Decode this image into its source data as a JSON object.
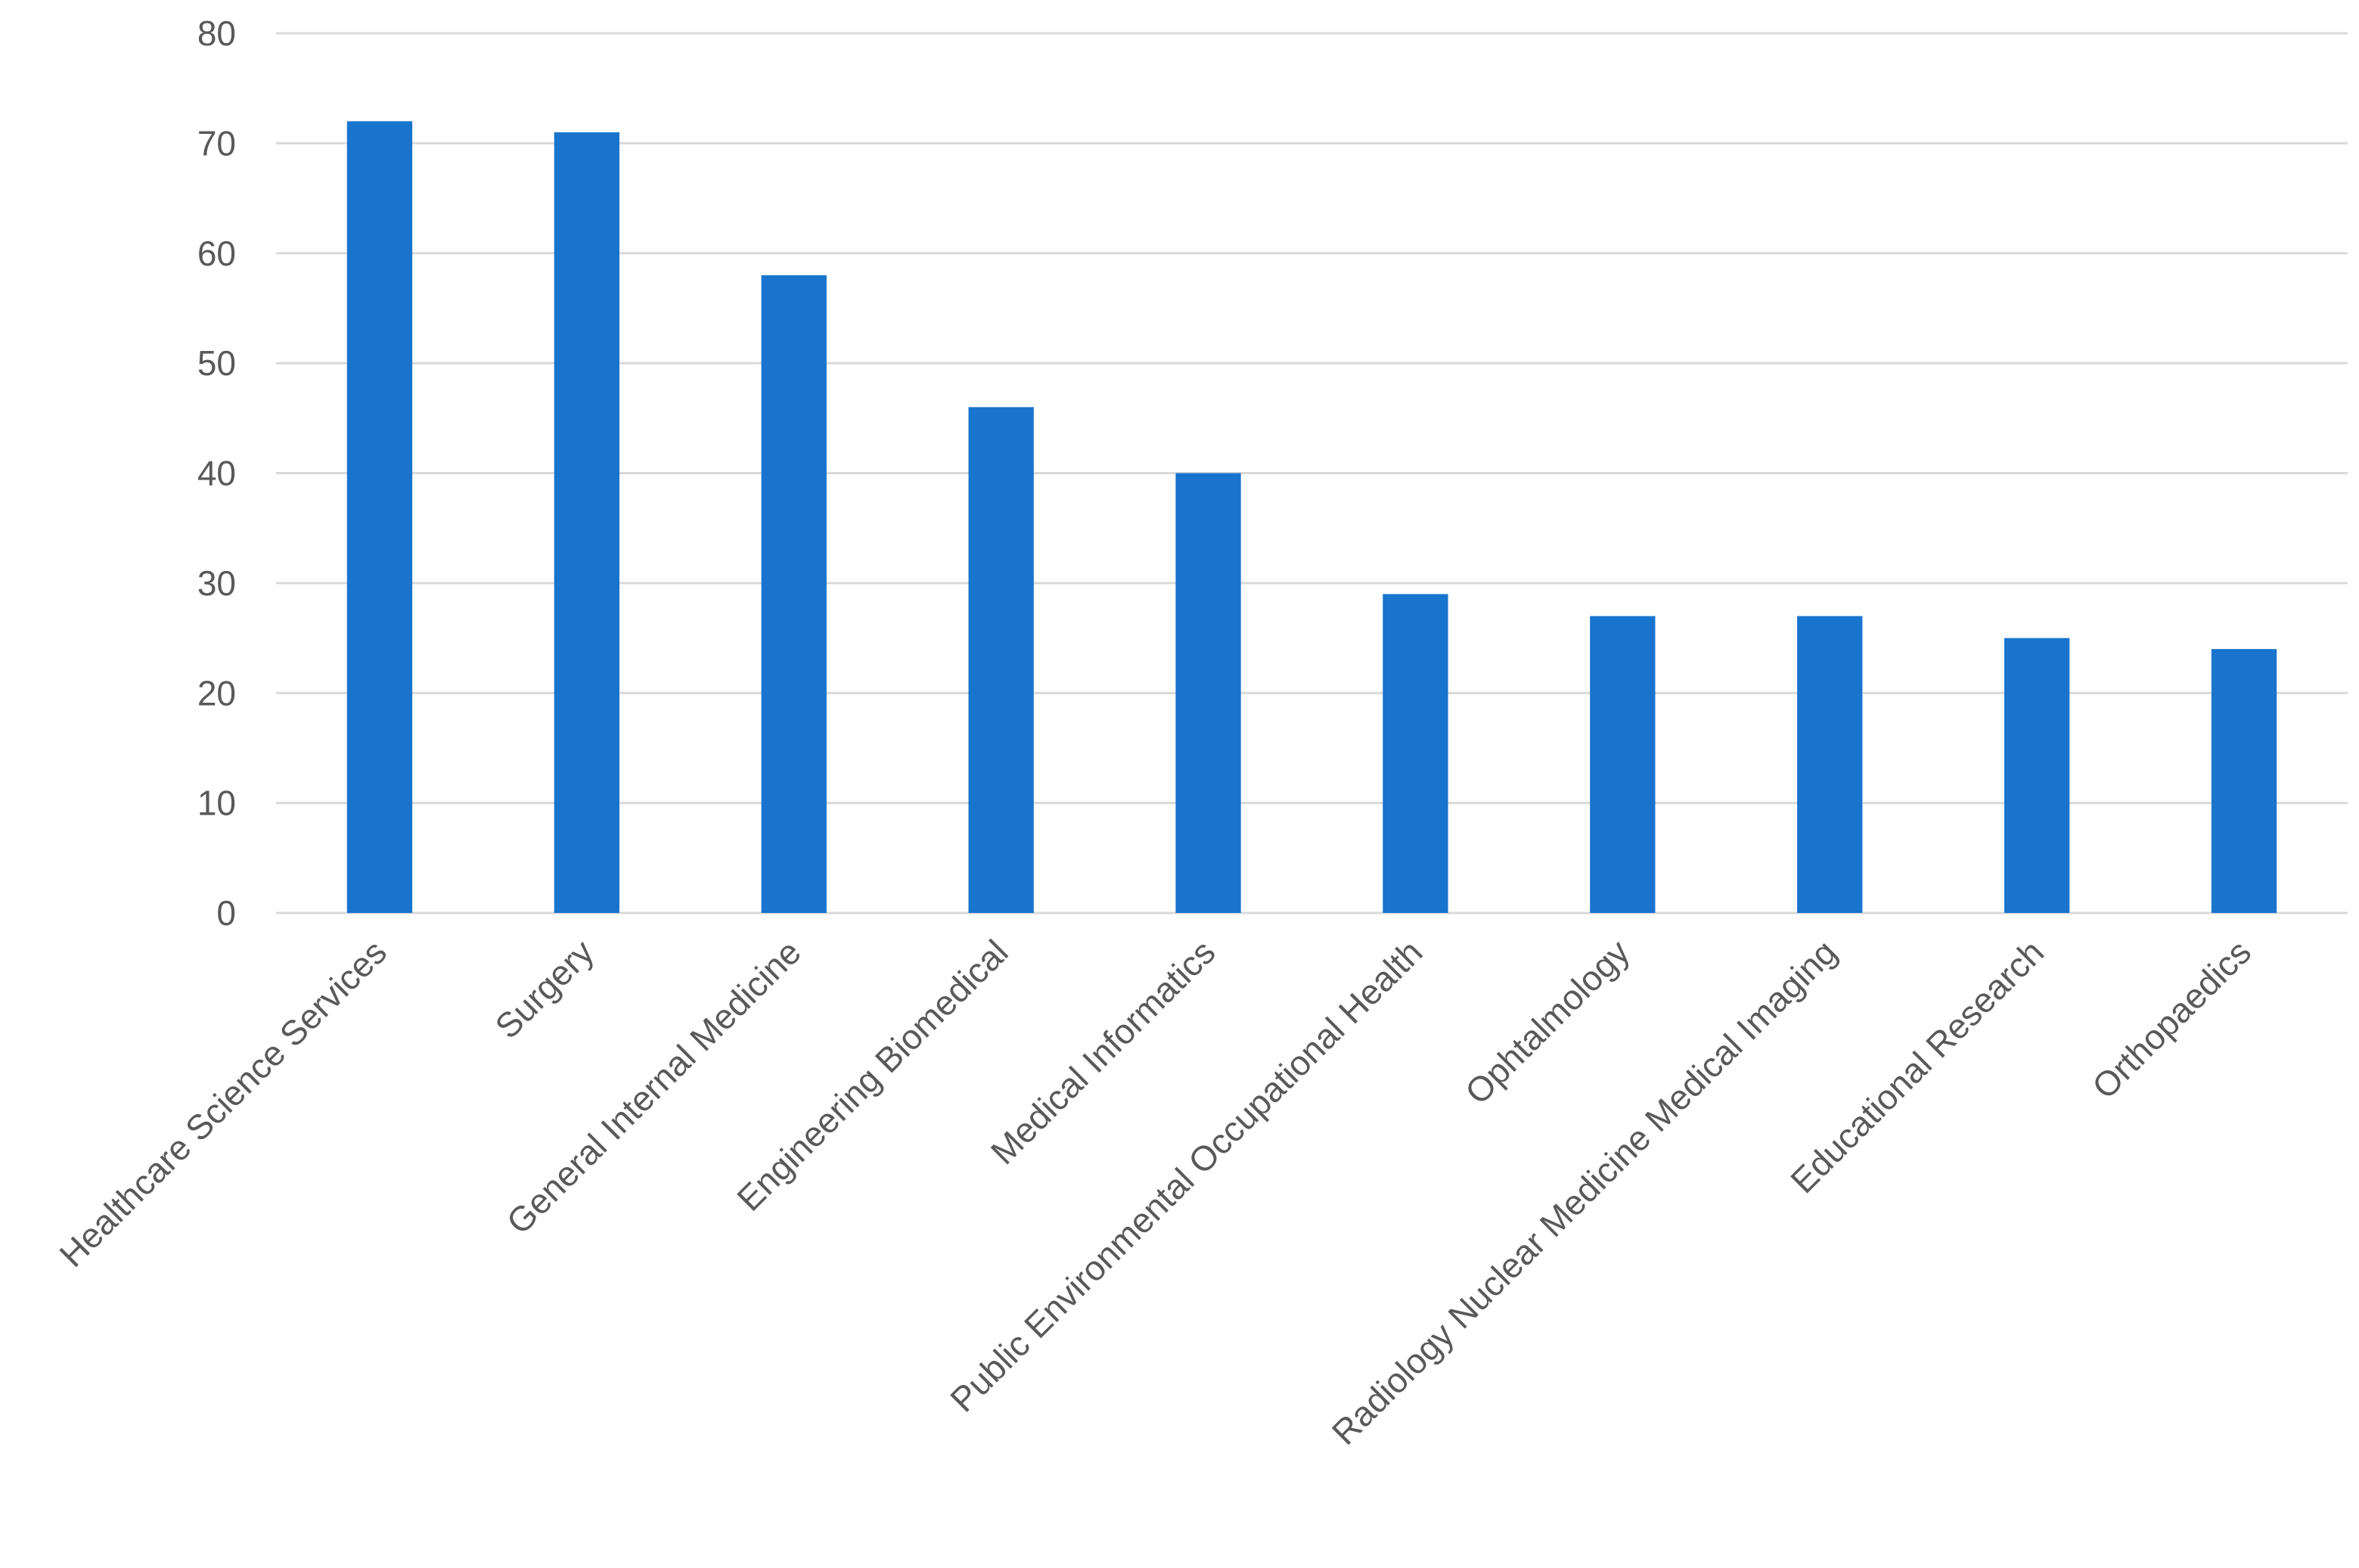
{
  "chart_data": {
    "type": "bar",
    "title": "",
    "xlabel": "",
    "ylabel": "",
    "categories": [
      "Healthcare Science Services",
      "Surgery",
      "General Internal Medicine",
      "Engineering Biomedical",
      "Medical Informatics",
      "Public Environmental Occupational Health",
      "Ophtalmology",
      "Radiology Nuclear Medicine Medical Imaging",
      "Educational Research",
      "Orthopaedics"
    ],
    "values": [
      72,
      71,
      58,
      46,
      40,
      29,
      27,
      27,
      25,
      24
    ],
    "ylim": [
      0,
      80
    ],
    "yticks": [
      0,
      10,
      20,
      30,
      40,
      50,
      60,
      70,
      80
    ],
    "grid": true,
    "legend": "none",
    "bar_color": "#1874CD"
  }
}
